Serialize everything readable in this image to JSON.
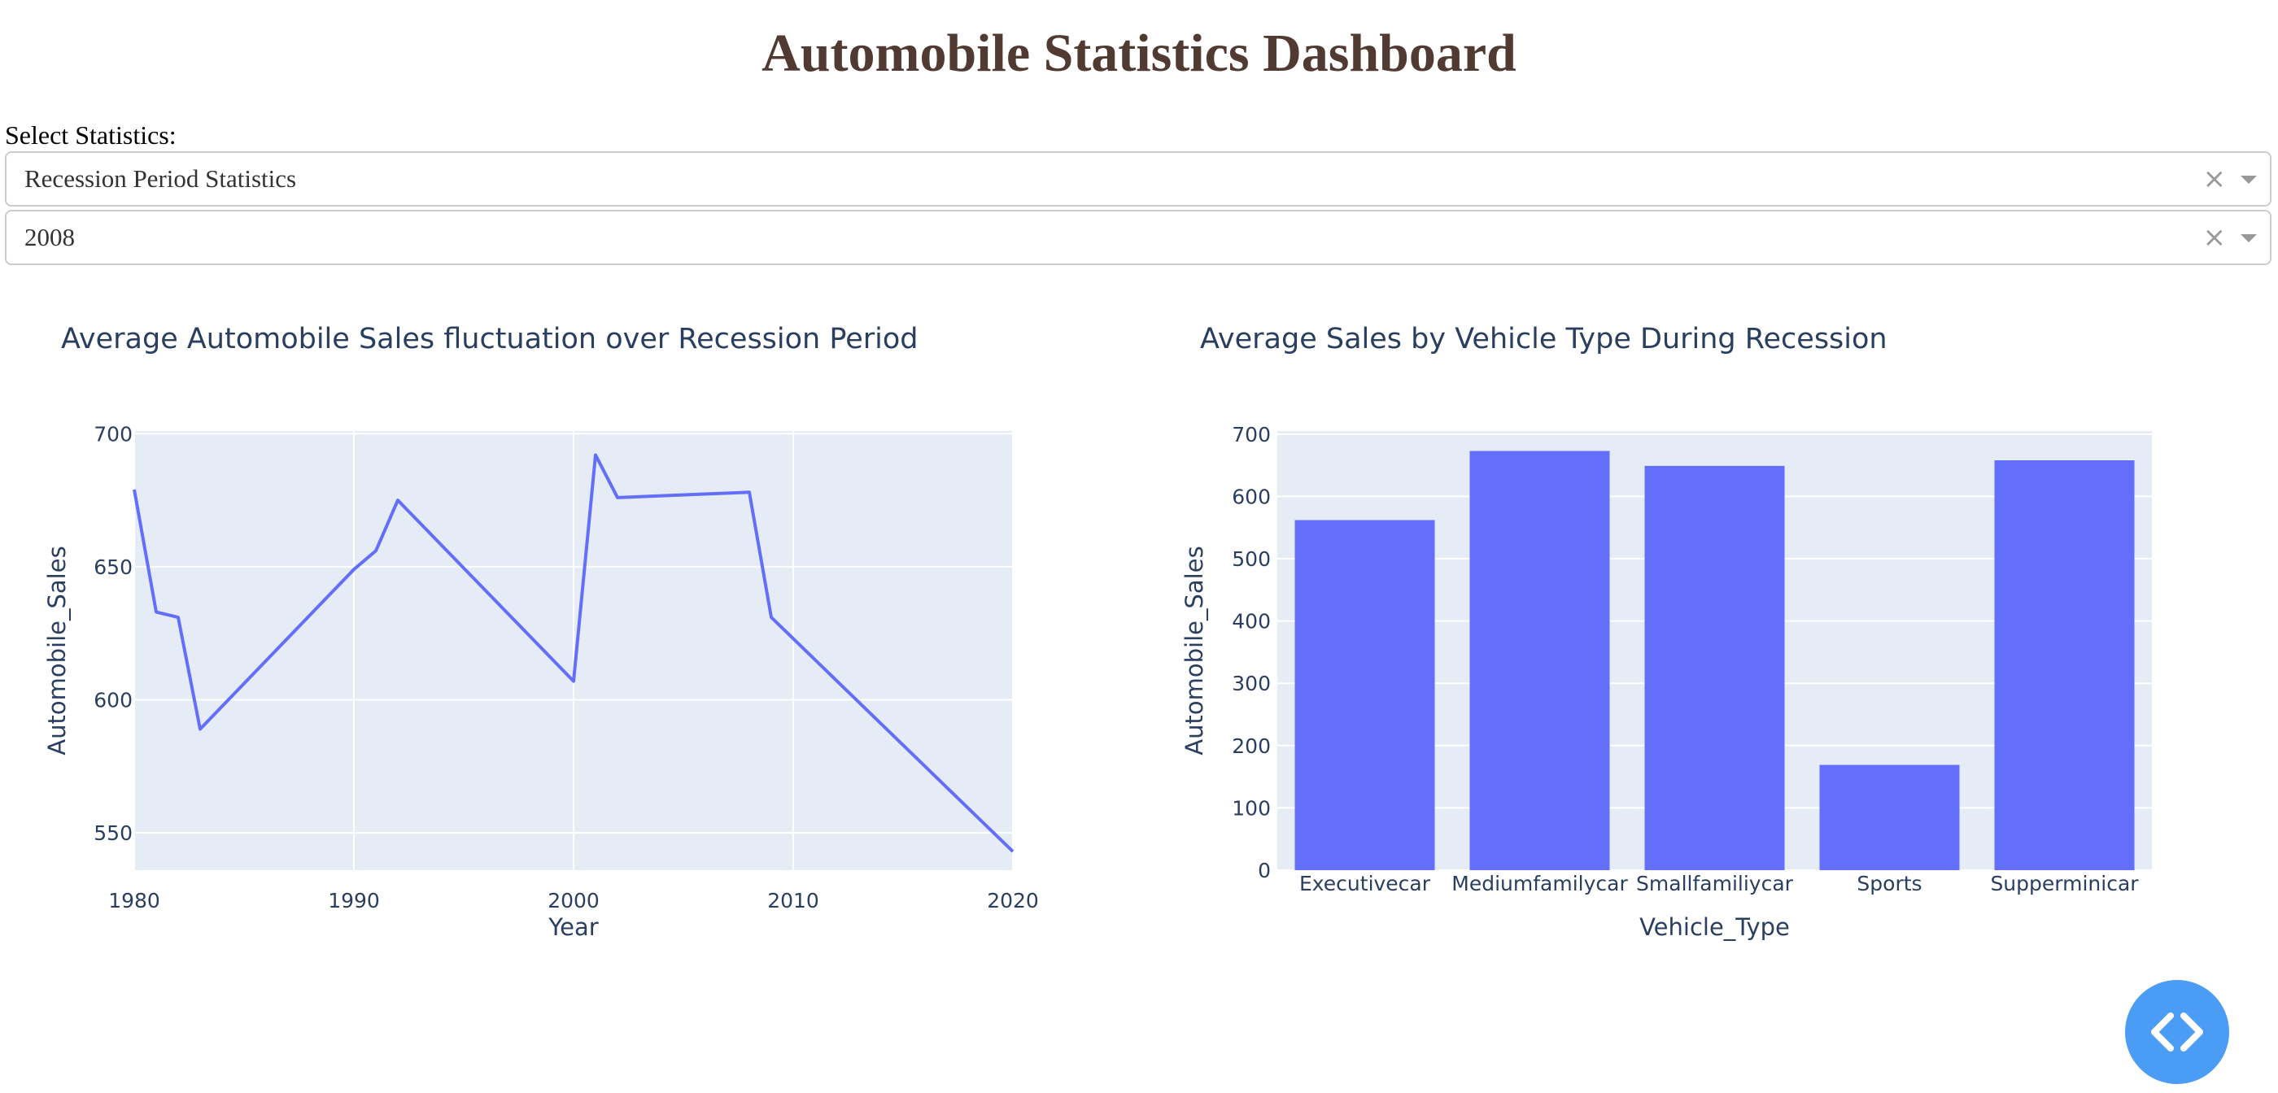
{
  "header": {
    "title": "Automobile Statistics Dashboard",
    "select_label": "Select Statistics:"
  },
  "dropdowns": {
    "statistics": {
      "value": "Recession Period Statistics",
      "clear_glyph": "×",
      "icon": "chevron-down-icon"
    },
    "year": {
      "value": "2008",
      "clear_glyph": "×",
      "icon": "chevron-down-icon"
    }
  },
  "colors": {
    "title": "#503A32",
    "series": "#636EFA",
    "plot_bg": "#E5ECF6",
    "axis_text": "#2A3F5F",
    "fab": "#4A9CF5"
  },
  "fab": {
    "icon": "code-icon"
  },
  "chart_data": [
    {
      "type": "line",
      "title": "Average Automobile Sales fluctuation over Recession Period",
      "xlabel": "Year",
      "ylabel": "Automobile_Sales",
      "xlim": [
        1980,
        2020
      ],
      "ylim": [
        536,
        701
      ],
      "xticks": [
        1980,
        1990,
        2000,
        2010,
        2020
      ],
      "yticks": [
        550,
        600,
        650,
        700
      ],
      "grid": true,
      "series": [
        {
          "x": [
            1980,
            1981,
            1982,
            1983,
            1990,
            1991,
            1992,
            2000,
            2001,
            2002,
            2008,
            2009,
            2020
          ],
          "y": [
            679,
            633,
            631,
            589,
            649,
            656,
            675,
            607,
            692,
            676,
            678,
            631,
            543
          ]
        }
      ]
    },
    {
      "type": "bar",
      "title": "Average Sales by Vehicle Type During Recession",
      "xlabel": "Vehicle_Type",
      "ylabel": "Automobile_Sales",
      "ylim": [
        0,
        705
      ],
      "yticks": [
        0,
        100,
        200,
        300,
        400,
        500,
        600,
        700
      ],
      "grid": true,
      "categories": [
        "Executivecar",
        "Mediumfamilycar",
        "Smallfamiliycar",
        "Sports",
        "Supperminicar"
      ],
      "values": [
        562,
        673,
        649,
        169,
        658
      ]
    }
  ]
}
